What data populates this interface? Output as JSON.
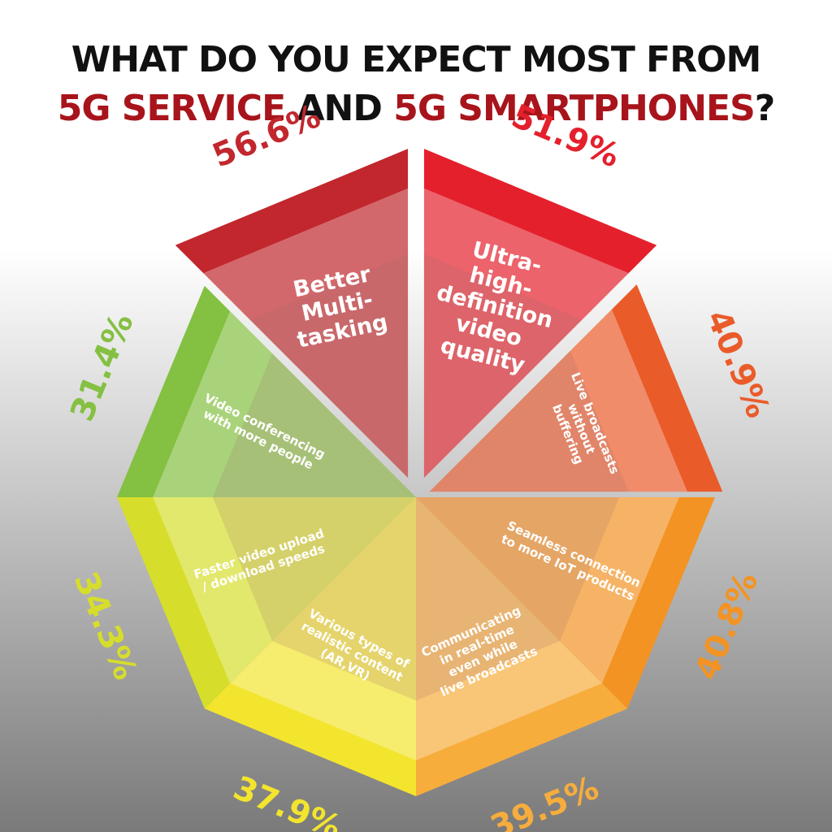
{
  "chart_data": {
    "type": "octagon",
    "title_line1": "WHAT DO YOU EXPECT MOST FROM",
    "title_line2": [
      "5G SERVICE",
      "AND",
      "5G SMARTPHONES",
      "?"
    ],
    "categories": [
      [
        "Better",
        "Multi-",
        "tasking"
      ],
      [
        "Ultra-",
        "high-",
        "definition",
        "video",
        "quality"
      ],
      [
        "Live broadcasts",
        "without",
        "buffering"
      ],
      [
        "Seamless connection",
        "to more IoT products"
      ],
      [
        "Communicating",
        "in real-time",
        "even while",
        "live broadcasts"
      ],
      [
        "Various types of",
        "realistic content",
        "(AR,VR)"
      ],
      [
        "Faster video upload",
        "/ download speeds"
      ],
      [
        "Video conferencing",
        "with more people"
      ]
    ],
    "values": [
      56.6,
      51.9,
      40.9,
      40.8,
      39.5,
      37.9,
      34.3,
      31.4
    ],
    "value_labels": [
      "56.6%",
      "51.9%",
      "40.9%",
      "40.8%",
      "39.5%",
      "37.9%",
      "34.3%",
      "31.4%"
    ],
    "colors": [
      "#c1272d",
      "#e4202c",
      "#ea5b2a",
      "#f39323",
      "#f6ad3c",
      "#f3e42e",
      "#d6de2b",
      "#84c041"
    ],
    "label_colors": [
      "#c1272d",
      "#e4202c",
      "#ea5b2a",
      "#f39323",
      "#f6ad3c",
      "#f3e42e",
      "#d6de2b",
      "#84c041"
    ]
  }
}
